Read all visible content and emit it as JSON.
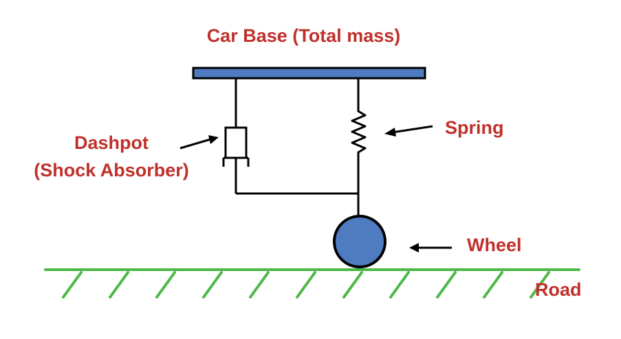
{
  "labels": {
    "car_base": "Car Base (Total mass)",
    "spring": "Spring",
    "dashpot_line1": "Dashpot",
    "dashpot_line2": "(Shock Absorber)",
    "wheel": "Wheel",
    "road": "Road"
  },
  "colors": {
    "label_text": "#c0302c",
    "car_base_fill": "#4f7cc0",
    "wheel_fill": "#4f7cc0",
    "road": "#4db848",
    "outline": "#000000"
  }
}
